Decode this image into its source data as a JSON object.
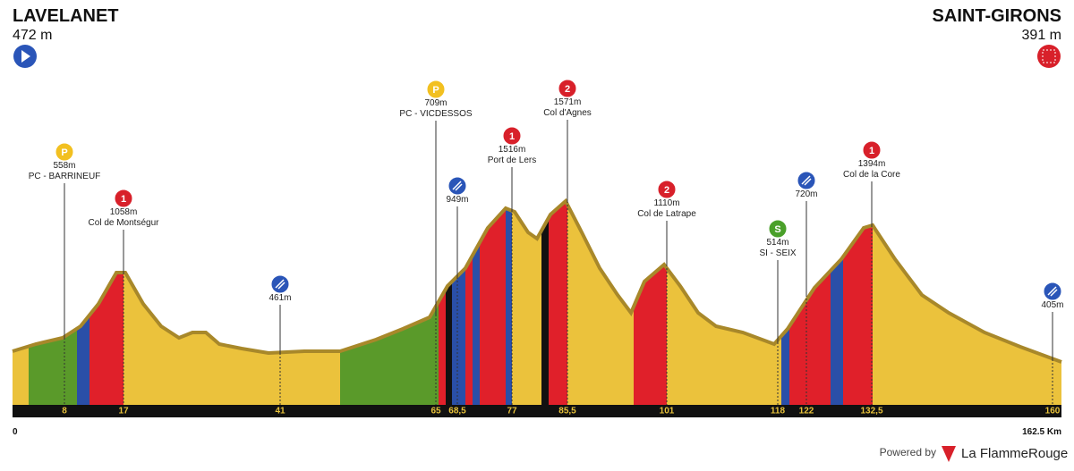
{
  "start": {
    "name": "LAVELANET",
    "altitude": "472 m"
  },
  "finish": {
    "name": "SAINT-GIRONS",
    "altitude": "391 m"
  },
  "distance_axis": {
    "start": "0",
    "end": "162.5 Km"
  },
  "km_markers": [
    "8",
    "17",
    "41",
    "65",
    "68,5",
    "77",
    "85,5",
    "101",
    "118",
    "122",
    "132,5",
    "160"
  ],
  "points": [
    {
      "badge": "P",
      "altitude": "558m",
      "name": "PC - BARRINEUF"
    },
    {
      "badge": "1",
      "altitude": "1058m",
      "name": "Col de Montségur"
    },
    {
      "altitude": "461m"
    },
    {
      "badge": "P",
      "altitude": "709m",
      "name": "PC - VICDESSOS"
    },
    {
      "altitude": "949m"
    },
    {
      "badge": "1",
      "altitude": "1516m",
      "name": "Port de Lers"
    },
    {
      "badge": "2",
      "altitude": "1571m",
      "name": "Col d'Agnes"
    },
    {
      "badge": "2",
      "altitude": "1110m",
      "name": "Col de Latrape"
    },
    {
      "badge": "S",
      "altitude": "514m",
      "name": "SI - SEIX"
    },
    {
      "altitude": "720m"
    },
    {
      "badge": "1",
      "altitude": "1394m",
      "name": "Col de la Core"
    },
    {
      "altitude": "405m"
    }
  ],
  "footer": {
    "powered": "Powered by",
    "brand": "La FlammeRouge"
  }
}
